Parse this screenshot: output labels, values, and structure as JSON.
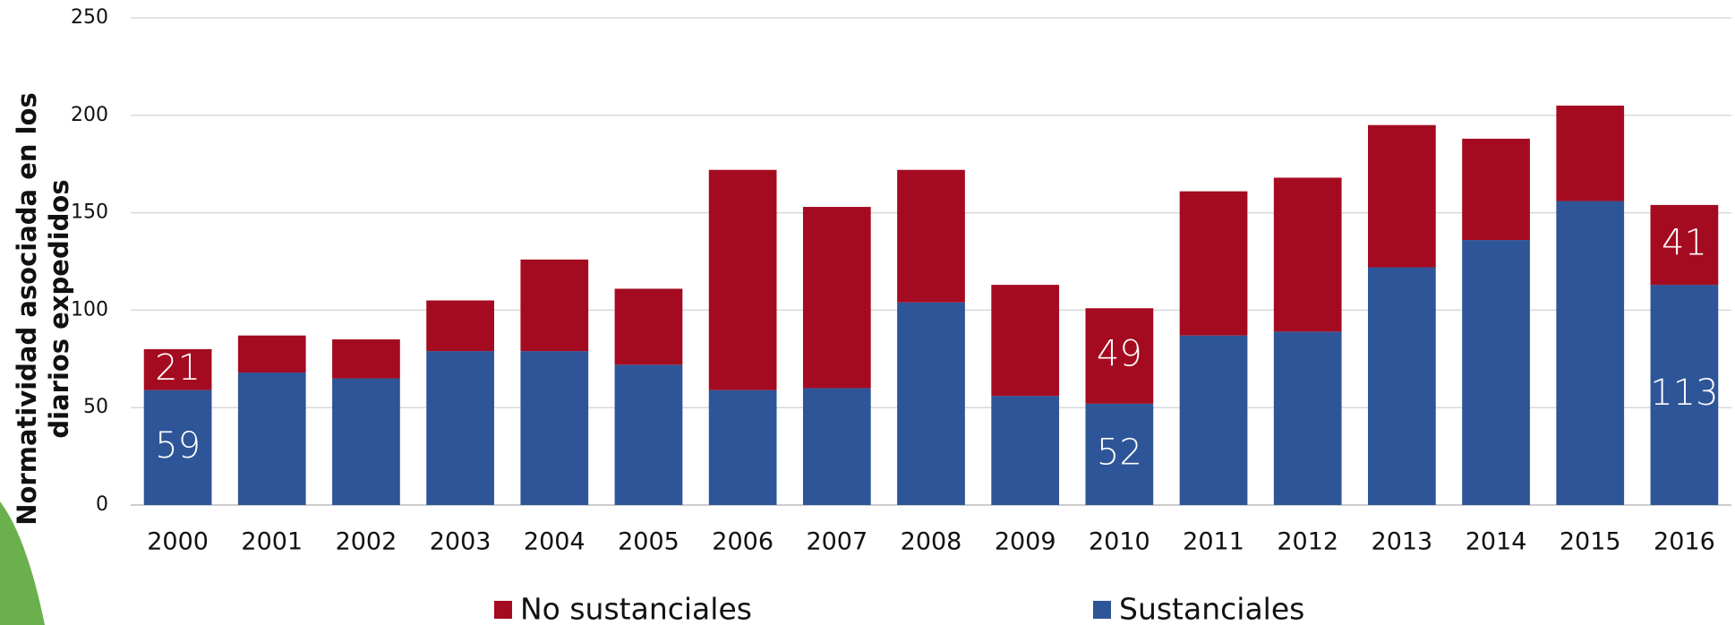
{
  "chart_data": {
    "type": "stacked-bar",
    "y_label": [
      "Normatividad asociada en los",
      "diarios expedidos"
    ],
    "categories": [
      "2000",
      "2001",
      "2002",
      "2003",
      "2004",
      "2005",
      "2006",
      "2007",
      "2008",
      "2009",
      "2010",
      "2011",
      "2012",
      "2013",
      "2014",
      "2015",
      "2016"
    ],
    "series": [
      {
        "name": "No sustanciales",
        "color": "#a50b20",
        "values": [
          21,
          19,
          20,
          26,
          47,
          39,
          113,
          93,
          68,
          57,
          49,
          74,
          79,
          73,
          52,
          49,
          41
        ],
        "labeled": [
          0,
          10,
          16
        ]
      },
      {
        "name": "Sustanciales",
        "color": "#2e5597",
        "values": [
          59,
          68,
          65,
          79,
          79,
          72,
          59,
          60,
          104,
          56,
          52,
          87,
          89,
          122,
          136,
          156,
          113
        ],
        "labeled": [
          0,
          10,
          16
        ]
      }
    ],
    "ylim": [
      0,
      250
    ],
    "yticks": [
      0,
      50,
      100,
      150,
      200,
      250
    ],
    "grid": true,
    "legend": "bottom"
  }
}
